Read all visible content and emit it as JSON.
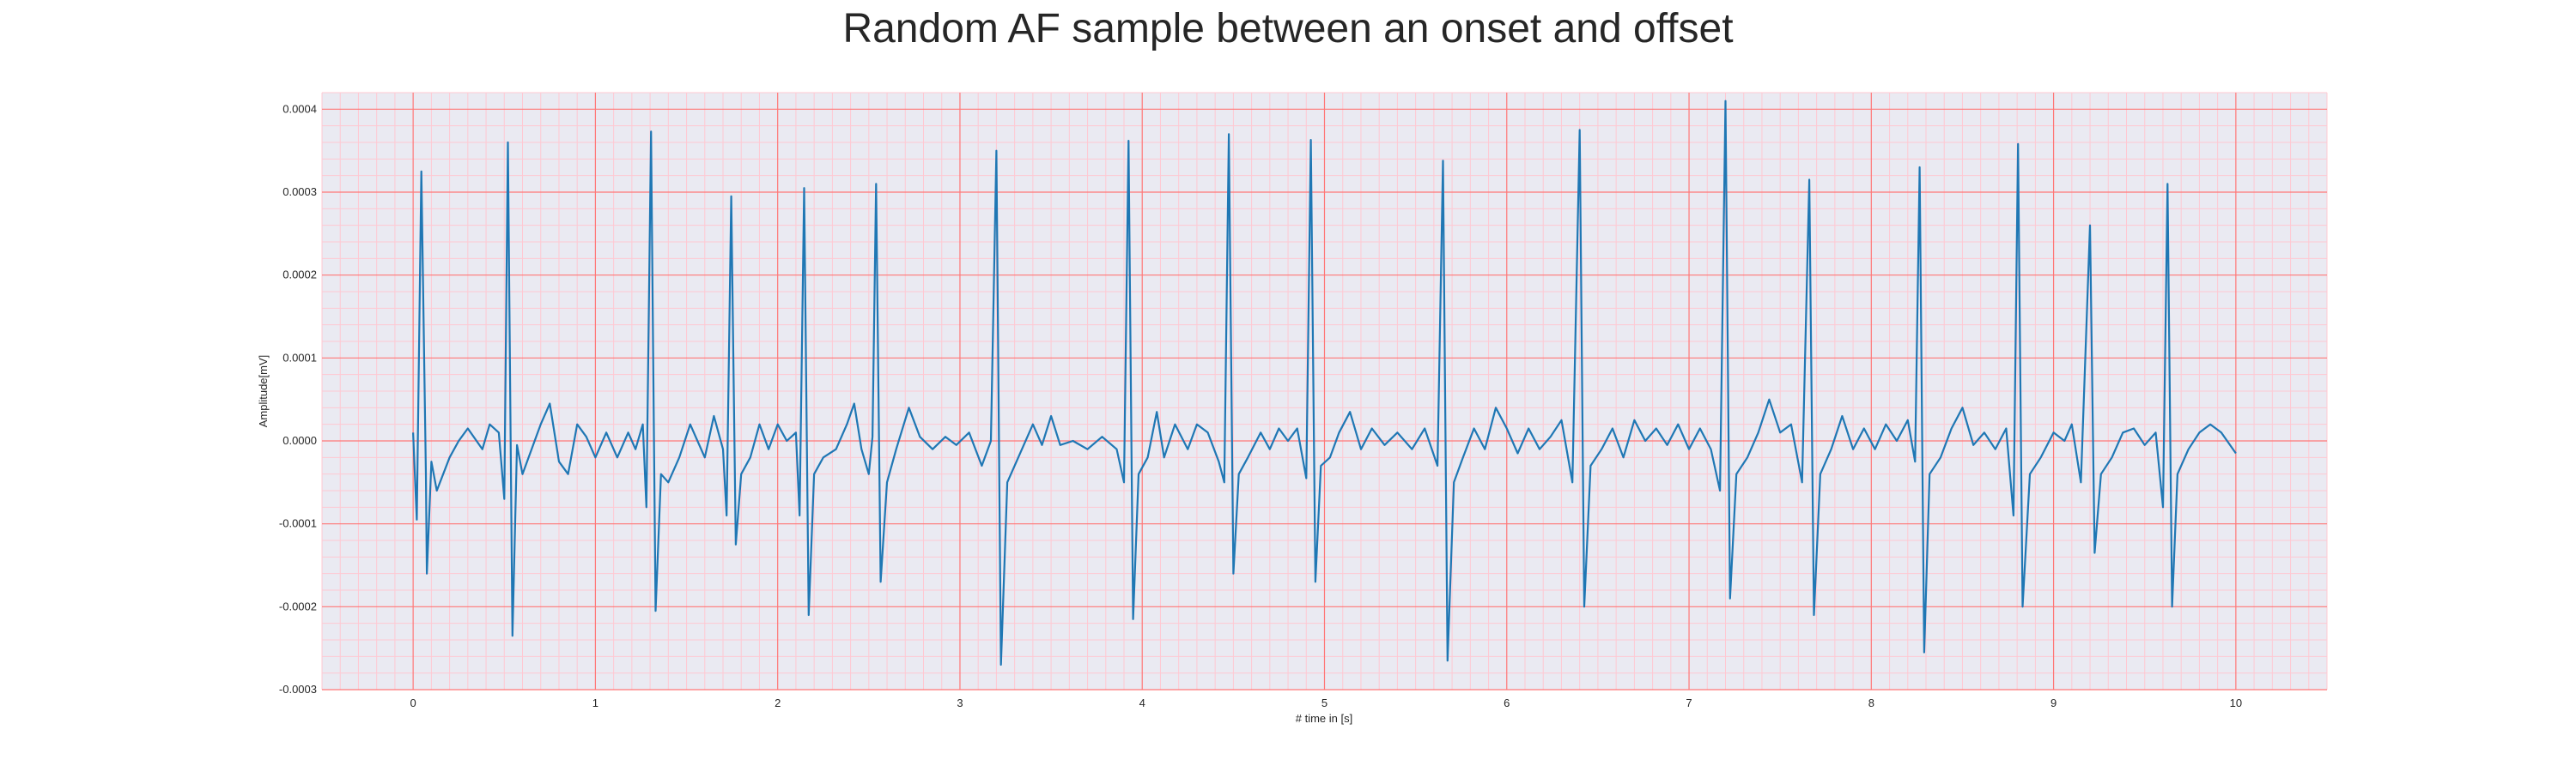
{
  "chart_data": {
    "type": "line",
    "title": "Random AF sample between an onset and offset",
    "xlabel": "# time in [s]",
    "ylabel": "Amplitude[mV]",
    "xlim": [
      -0.5,
      10.5
    ],
    "ylim": [
      -0.0003,
      0.00042
    ],
    "xticks": [
      0,
      1,
      2,
      3,
      4,
      5,
      6,
      7,
      8,
      9,
      10
    ],
    "xtick_labels": [
      "0",
      "1",
      "2",
      "3",
      "4",
      "5",
      "6",
      "7",
      "8",
      "9",
      "10"
    ],
    "yticks": [
      -0.0003,
      -0.0002,
      -0.0001,
      0.0,
      0.0001,
      0.0002,
      0.0003,
      0.0004
    ],
    "ytick_labels": [
      "-0.0003",
      "-0.0002",
      "-0.0001",
      "0.0000",
      "0.0001",
      "0.0002",
      "0.0003",
      "0.0004"
    ],
    "grid": true,
    "colors": {
      "line": "#1f77b4",
      "plot_background": "#eaeaf2",
      "major_grid": "#ff7777",
      "minor_grid": "#ffc8d2"
    },
    "series": [
      {
        "points": [
          [
            0.0,
            1e-05
          ],
          [
            0.02,
            -9.5e-05
          ],
          [
            0.045,
            0.000325
          ],
          [
            0.07,
            -4e-05
          ],
          [
            0.075,
            -0.00016
          ],
          [
            0.1,
            -2.5e-05
          ],
          [
            0.13,
            -6e-05
          ],
          [
            0.2,
            -2e-05
          ],
          [
            0.25,
            0.0
          ],
          [
            0.3,
            1.5e-05
          ],
          [
            0.38,
            -1e-05
          ],
          [
            0.42,
            2e-05
          ],
          [
            0.47,
            1e-05
          ],
          [
            0.5,
            -7e-05
          ],
          [
            0.52,
            0.00036
          ],
          [
            0.545,
            -0.000235
          ],
          [
            0.57,
            -5e-06
          ],
          [
            0.6,
            -4e-05
          ],
          [
            0.65,
            -1e-05
          ],
          [
            0.7,
            2e-05
          ],
          [
            0.75,
            4.5e-05
          ],
          [
            0.8,
            -2.5e-05
          ],
          [
            0.85,
            -4e-05
          ],
          [
            0.9,
            2e-05
          ],
          [
            0.95,
            5e-06
          ],
          [
            1.0,
            -2e-05
          ],
          [
            1.06,
            1e-05
          ],
          [
            1.12,
            -2e-05
          ],
          [
            1.18,
            1e-05
          ],
          [
            1.22,
            -1e-05
          ],
          [
            1.26,
            2e-05
          ],
          [
            1.28,
            -8e-05
          ],
          [
            1.305,
            0.000373
          ],
          [
            1.33,
            -0.000205
          ],
          [
            1.36,
            -4e-05
          ],
          [
            1.4,
            -5e-05
          ],
          [
            1.46,
            -2e-05
          ],
          [
            1.52,
            2e-05
          ],
          [
            1.56,
            0.0
          ],
          [
            1.6,
            -2e-05
          ],
          [
            1.65,
            3e-05
          ],
          [
            1.7,
            -1e-05
          ],
          [
            1.72,
            -9e-05
          ],
          [
            1.745,
            0.000295
          ],
          [
            1.77,
            -0.000125
          ],
          [
            1.8,
            -4e-05
          ],
          [
            1.85,
            -2e-05
          ],
          [
            1.9,
            2e-05
          ],
          [
            1.95,
            -1e-05
          ],
          [
            2.0,
            2e-05
          ],
          [
            2.05,
            0.0
          ],
          [
            2.1,
            1e-05
          ],
          [
            2.12,
            -9e-05
          ],
          [
            2.145,
            0.000305
          ],
          [
            2.17,
            -0.00021
          ],
          [
            2.2,
            -4e-05
          ],
          [
            2.25,
            -2e-05
          ],
          [
            2.32,
            -1e-05
          ],
          [
            2.38,
            2e-05
          ],
          [
            2.42,
            4.5e-05
          ],
          [
            2.46,
            -1e-05
          ],
          [
            2.5,
            -4e-05
          ],
          [
            2.52,
            5e-06
          ],
          [
            2.54,
            0.00031
          ],
          [
            2.565,
            -0.00017
          ],
          [
            2.6,
            -5e-05
          ],
          [
            2.65,
            -1e-05
          ],
          [
            2.72,
            4e-05
          ],
          [
            2.78,
            5e-06
          ],
          [
            2.85,
            -1e-05
          ],
          [
            2.92,
            5e-06
          ],
          [
            2.98,
            -5e-06
          ],
          [
            3.05,
            1e-05
          ],
          [
            3.12,
            -3e-05
          ],
          [
            3.17,
            0.0
          ],
          [
            3.2,
            0.00035
          ],
          [
            3.225,
            -0.00027
          ],
          [
            3.26,
            -5e-05
          ],
          [
            3.32,
            -2e-05
          ],
          [
            3.4,
            2e-05
          ],
          [
            3.45,
            -5e-06
          ],
          [
            3.5,
            3e-05
          ],
          [
            3.55,
            -5e-06
          ],
          [
            3.62,
            0.0
          ],
          [
            3.7,
            -1e-05
          ],
          [
            3.78,
            5e-06
          ],
          [
            3.86,
            -1e-05
          ],
          [
            3.9,
            -5e-05
          ],
          [
            3.925,
            0.000362
          ],
          [
            3.95,
            -0.000215
          ],
          [
            3.98,
            -4e-05
          ],
          [
            4.03,
            -2e-05
          ],
          [
            4.08,
            3.5e-05
          ],
          [
            4.12,
            -2e-05
          ],
          [
            4.18,
            2e-05
          ],
          [
            4.25,
            -1e-05
          ],
          [
            4.3,
            2e-05
          ],
          [
            4.36,
            1e-05
          ],
          [
            4.42,
            -2.5e-05
          ],
          [
            4.45,
            -5e-05
          ],
          [
            4.475,
            0.00037
          ],
          [
            4.5,
            -0.00016
          ],
          [
            4.53,
            -4e-05
          ],
          [
            4.58,
            -2e-05
          ],
          [
            4.65,
            1e-05
          ],
          [
            4.7,
            -1e-05
          ],
          [
            4.75,
            1.5e-05
          ],
          [
            4.8,
            0.0
          ],
          [
            4.85,
            1.5e-05
          ],
          [
            4.9,
            -4.5e-05
          ],
          [
            4.925,
            0.000363
          ],
          [
            4.95,
            -0.00017
          ],
          [
            4.98,
            -3e-05
          ],
          [
            5.03,
            -2e-05
          ],
          [
            5.08,
            1e-05
          ],
          [
            5.14,
            3.5e-05
          ],
          [
            5.2,
            -1e-05
          ],
          [
            5.26,
            1.5e-05
          ],
          [
            5.33,
            -5e-06
          ],
          [
            5.4,
            1e-05
          ],
          [
            5.48,
            -1e-05
          ],
          [
            5.55,
            1.5e-05
          ],
          [
            5.62,
            -3e-05
          ],
          [
            5.65,
            0.000338
          ],
          [
            5.675,
            -0.000265
          ],
          [
            5.71,
            -5e-05
          ],
          [
            5.76,
            -2e-05
          ],
          [
            5.82,
            1.5e-05
          ],
          [
            5.88,
            -1e-05
          ],
          [
            5.94,
            4e-05
          ],
          [
            6.0,
            1.5e-05
          ],
          [
            6.06,
            -1.5e-05
          ],
          [
            6.12,
            1.5e-05
          ],
          [
            6.18,
            -1e-05
          ],
          [
            6.24,
            5e-06
          ],
          [
            6.3,
            2.5e-05
          ],
          [
            6.36,
            -5e-05
          ],
          [
            6.4,
            0.000375
          ],
          [
            6.425,
            -0.0002
          ],
          [
            6.46,
            -3e-05
          ],
          [
            6.52,
            -1e-05
          ],
          [
            6.58,
            1.5e-05
          ],
          [
            6.64,
            -2e-05
          ],
          [
            6.7,
            2.5e-05
          ],
          [
            6.76,
            0.0
          ],
          [
            6.82,
            1.5e-05
          ],
          [
            6.88,
            -5e-06
          ],
          [
            6.94,
            2e-05
          ],
          [
            7.0,
            -1e-05
          ],
          [
            7.06,
            1.5e-05
          ],
          [
            7.12,
            -1e-05
          ],
          [
            7.17,
            -6e-05
          ],
          [
            7.2,
            0.00041
          ],
          [
            7.225,
            -0.00019
          ],
          [
            7.26,
            -4e-05
          ],
          [
            7.32,
            -2e-05
          ],
          [
            7.38,
            1e-05
          ],
          [
            7.44,
            5e-05
          ],
          [
            7.5,
            1e-05
          ],
          [
            7.56,
            2e-05
          ],
          [
            7.62,
            -5e-05
          ],
          [
            7.66,
            0.000315
          ],
          [
            7.685,
            -0.00021
          ],
          [
            7.72,
            -4e-05
          ],
          [
            7.78,
            -1e-05
          ],
          [
            7.84,
            3e-05
          ],
          [
            7.9,
            -1e-05
          ],
          [
            7.96,
            1.5e-05
          ],
          [
            8.02,
            -1e-05
          ],
          [
            8.08,
            2e-05
          ],
          [
            8.14,
            0.0
          ],
          [
            8.2,
            2.5e-05
          ],
          [
            8.24,
            -2.5e-05
          ],
          [
            8.265,
            0.00033
          ],
          [
            8.29,
            -0.000255
          ],
          [
            8.32,
            -4e-05
          ],
          [
            8.38,
            -2e-05
          ],
          [
            8.44,
            1.5e-05
          ],
          [
            8.5,
            4e-05
          ],
          [
            8.56,
            -5e-06
          ],
          [
            8.62,
            1e-05
          ],
          [
            8.68,
            -1e-05
          ],
          [
            8.74,
            1.5e-05
          ],
          [
            8.78,
            -9e-05
          ],
          [
            8.805,
            0.000358
          ],
          [
            8.83,
            -0.0002
          ],
          [
            8.87,
            -4e-05
          ],
          [
            8.93,
            -2e-05
          ],
          [
            9.0,
            1e-05
          ],
          [
            9.06,
            0.0
          ],
          [
            9.1,
            2e-05
          ],
          [
            9.15,
            -5e-05
          ],
          [
            9.2,
            0.00026
          ],
          [
            9.225,
            -0.000135
          ],
          [
            9.26,
            -4e-05
          ],
          [
            9.32,
            -2e-05
          ],
          [
            9.38,
            1e-05
          ],
          [
            9.44,
            1.5e-05
          ],
          [
            9.5,
            -5e-06
          ],
          [
            9.56,
            1e-05
          ],
          [
            9.6,
            -8e-05
          ],
          [
            9.625,
            0.00031
          ],
          [
            9.65,
            -0.0002
          ],
          [
            9.68,
            -4e-05
          ],
          [
            9.74,
            -1e-05
          ],
          [
            9.8,
            1e-05
          ],
          [
            9.86,
            2e-05
          ],
          [
            9.92,
            1e-05
          ],
          [
            10.0,
            -1.5e-05
          ]
        ]
      }
    ]
  }
}
